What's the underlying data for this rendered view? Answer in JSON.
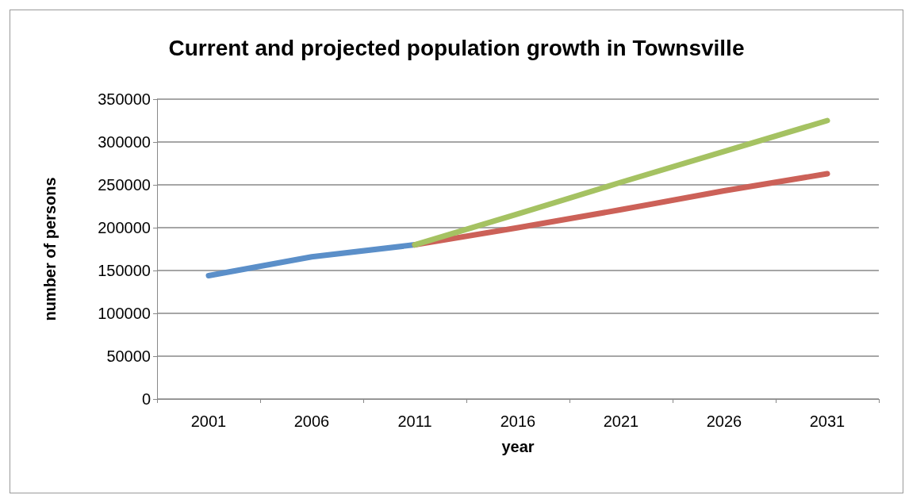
{
  "chart_data": {
    "type": "line",
    "title": "Current and projected population growth in Townsville",
    "xlabel": "year",
    "ylabel": "number of persons",
    "categories": [
      "2001",
      "2006",
      "2011",
      "2016",
      "2021",
      "2026",
      "2031"
    ],
    "series": [
      {
        "color": "#5b8fc9",
        "values": [
          144000,
          166000,
          180000,
          null,
          null,
          null,
          null
        ]
      },
      {
        "color": "#cc6158",
        "values": [
          null,
          null,
          180000,
          200000,
          221000,
          243000,
          263000
        ]
      },
      {
        "color": "#a5c262",
        "values": [
          null,
          null,
          180000,
          216000,
          253000,
          289000,
          325000
        ]
      }
    ],
    "ylim": [
      0,
      350000
    ],
    "yticks": [
      0,
      50000,
      100000,
      150000,
      200000,
      250000,
      300000,
      350000
    ],
    "grid": "y",
    "marker": "none",
    "line_style": "solid"
  }
}
